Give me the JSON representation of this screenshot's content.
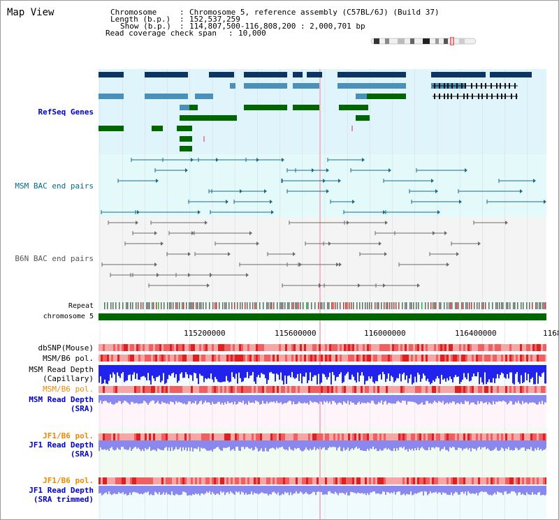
{
  "title": "Map View",
  "info": {
    "chromosome_key": "Chromosome",
    "chromosome_val": "Chromosome 5, reference assembly (C57BL/6J) (Build 37)",
    "length_key": "Length (b.p.)",
    "length_val": "152,537,259",
    "show_key": "Show (b.p.)",
    "show_val": "114,807,500-116,808,200 : 2,000,701 bp",
    "coverage_key": "Read coverage check span",
    "coverage_val": "10,000"
  },
  "tracks": {
    "refseq": "RefSeq Genes",
    "msm_bac": "MSM BAC end pairs",
    "b6n_bac": "B6N BAC end pairs",
    "repeat": "Repeat",
    "chromosome": "chromosome 5",
    "dbsnp": "dbSNP(Mouse)",
    "msm_b6_pol1": "MSM/B6 pol.",
    "msm_depth_cap_1": "MSM Read Depth",
    "msm_depth_cap_2": "(Capillary)",
    "msm_b6_pol2": "MSM/B6 pol.",
    "msm_depth_sra_1": "MSM Read Depth",
    "msm_depth_sra_2": "(SRA)",
    "jf1_b6_pol1": "JF1/B6 pol.",
    "jf1_depth_sra_1": "JF1 Read Depth",
    "jf1_depth_sra_2": "(SRA)",
    "jf1_b6_pol2": "JF1/B6 pol.",
    "jf1_depth_trim_1": "JF1 Read Depth",
    "jf1_depth_trim_2": "(SRA trimmed)"
  },
  "axis": {
    "ticks": [
      "115200000",
      "115600000",
      "116000000",
      "116400000",
      "1168"
    ]
  },
  "colors": {
    "refseq_dark": "#0c3464",
    "refseq_mid": "#4a90b8",
    "refseq_green": "#006600",
    "bac_teal": "#1a6a8a",
    "chromosome_green": "#006600",
    "snp_red": "#ee4444",
    "depth_blue": "#2222ee",
    "depth_light": "#8888ee"
  }
}
